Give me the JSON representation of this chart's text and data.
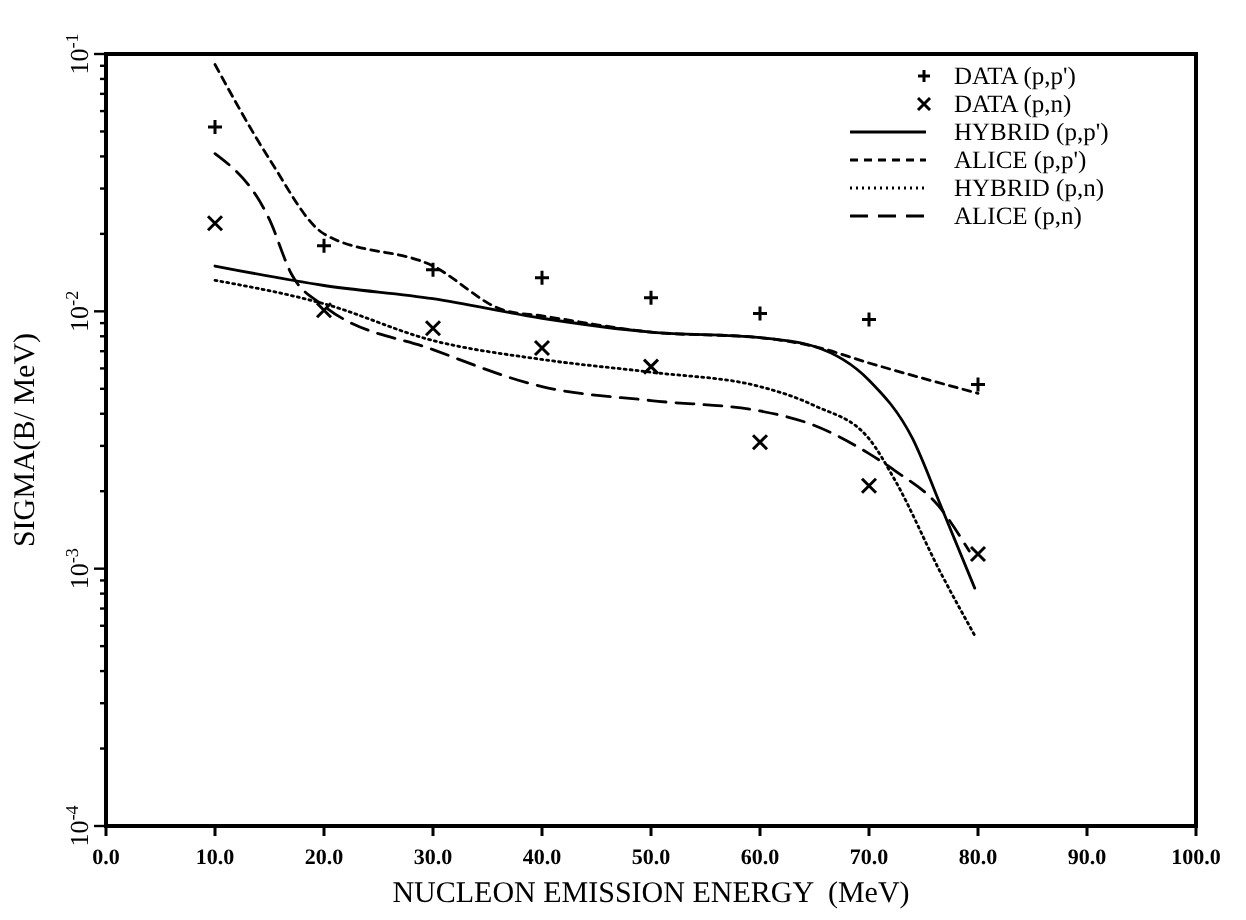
{
  "chart_data": {
    "type": "line",
    "xlabel": "NUCLEON EMISSION ENERGY  (MeV)",
    "ylabel": "SIGMA(B/ MeV)",
    "log": "y",
    "legend": "top right",
    "grid": false,
    "xlim": [
      0,
      100
    ],
    "xticks": [
      {
        "value": 0,
        "label": "0.0"
      },
      {
        "value": 10,
        "label": "10.0"
      },
      {
        "value": 20,
        "label": "20.0"
      },
      {
        "value": 30,
        "label": "30.0"
      },
      {
        "value": 40,
        "label": "40.0"
      },
      {
        "value": 50,
        "label": "50.0"
      },
      {
        "value": 60,
        "label": "60.0"
      },
      {
        "value": 70,
        "label": "70.0"
      },
      {
        "value": 80,
        "label": "80.0"
      },
      {
        "value": 90,
        "label": "90.0"
      },
      {
        "value": 100,
        "label": "100.0"
      }
    ],
    "ylim": [
      0.0001,
      0.1
    ],
    "yticks": [
      {
        "value": 0.0001,
        "label": "10$^{-4}$"
      },
      {
        "value": 0.0002,
        "label": null
      },
      {
        "value": 0.0003,
        "label": null
      },
      {
        "value": 0.0004,
        "label": null
      },
      {
        "value": 0.0005,
        "label": null
      },
      {
        "value": 0.0006,
        "label": null
      },
      {
        "value": 0.0007,
        "label": null
      },
      {
        "value": 0.0008,
        "label": null
      },
      {
        "value": 0.0009,
        "label": null
      },
      {
        "value": 0.001,
        "label": "10$^{-3}$"
      },
      {
        "value": 0.002,
        "label": null
      },
      {
        "value": 0.003,
        "label": null
      },
      {
        "value": 0.004,
        "label": null
      },
      {
        "value": 0.005,
        "label": null
      },
      {
        "value": 0.006,
        "label": null
      },
      {
        "value": 0.007,
        "label": null
      },
      {
        "value": 0.008,
        "label": null
      },
      {
        "value": 0.009,
        "label": null
      },
      {
        "value": 0.01,
        "label": "10$^{-2}$"
      },
      {
        "value": 0.02,
        "label": null
      },
      {
        "value": 0.03,
        "label": null
      },
      {
        "value": 0.04,
        "label": null
      },
      {
        "value": 0.05,
        "label": null
      },
      {
        "value": 0.06,
        "label": null
      },
      {
        "value": 0.07,
        "label": null
      },
      {
        "value": 0.08,
        "label": null
      },
      {
        "value": 0.09,
        "label": null
      },
      {
        "value": 0.1,
        "label": "10$^{-1}$"
      }
    ],
    "series": [
      {
        "name": "DATA (p,p')",
        "type": "scatter",
        "marker": "plus",
        "color": "#000000",
        "x": [
          10,
          20,
          30,
          40,
          50,
          60,
          70,
          80
        ],
        "values": [
          0.052,
          0.018,
          0.0145,
          0.0135,
          0.0113,
          0.0098,
          0.0093,
          0.0052
        ]
      },
      {
        "name": "DATA (p,n)",
        "type": "scatter",
        "marker": "cross",
        "color": "#000000",
        "x": [
          10,
          20,
          30,
          40,
          50,
          60,
          70,
          80
        ],
        "values": [
          0.022,
          0.0101,
          0.0086,
          0.0072,
          0.0061,
          0.0031,
          0.0021,
          0.00114
        ]
      },
      {
        "name": "HYBRID (p,p')",
        "type": "line",
        "line_style": "solid",
        "color": "#000000",
        "x": [
          10,
          20,
          30,
          40,
          50,
          60,
          65,
          70,
          74,
          76.6,
          79.7
        ],
        "values": [
          0.015,
          0.0126,
          0.0112,
          0.0094,
          0.0083,
          0.0079,
          0.0073,
          0.0054,
          0.0032,
          0.00175,
          0.00084
        ]
      },
      {
        "name": "ALICE (p,p')",
        "type": "line",
        "line_style": "dashed",
        "color": "#000000",
        "x": [
          10,
          15,
          20,
          30,
          36.5,
          40,
          50,
          60,
          65,
          70,
          80
        ],
        "values": [
          0.091,
          0.039,
          0.02,
          0.015,
          0.0101,
          0.0096,
          0.0083,
          0.0079,
          0.0073,
          0.0063,
          0.0048
        ]
      },
      {
        "name": "HYBRID (p,n)",
        "type": "line",
        "line_style": "dotted",
        "color": "#000000",
        "x": [
          10,
          20,
          30,
          40,
          50,
          60,
          65,
          70,
          72.4,
          76.6,
          79.7
        ],
        "values": [
          0.0132,
          0.0107,
          0.0077,
          0.0065,
          0.0058,
          0.0051,
          0.0043,
          0.0032,
          0.0022,
          0.00096,
          0.00055
        ]
      },
      {
        "name": "ALICE (p,n)",
        "type": "line",
        "line_style": "longdashed",
        "color": "#000000",
        "x": [
          10,
          15,
          17,
          20,
          30,
          40,
          50,
          60,
          65,
          70,
          72.4,
          76.4,
          79.2
        ],
        "values": [
          0.041,
          0.0227,
          0.014,
          0.0105,
          0.0071,
          0.0051,
          0.0045,
          0.0041,
          0.0036,
          0.0028,
          0.0024,
          0.00175,
          0.00117
        ]
      }
    ]
  }
}
